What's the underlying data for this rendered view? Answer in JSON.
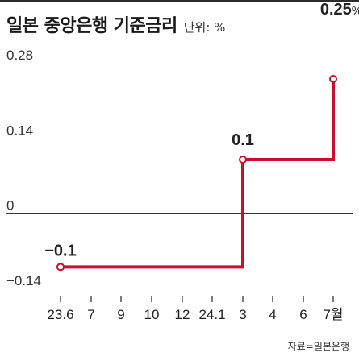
{
  "chart_data": {
    "type": "line",
    "step": true,
    "title": "일본 중앙은행 기준금리",
    "unit_label": "단위: %",
    "source": "자료=일본은행",
    "ylim": [
      -0.14,
      0.28
    ],
    "y_ticks": [
      "0.28",
      "0.14",
      "0",
      "−0.14"
    ],
    "y_tick_values": [
      0.28,
      0.14,
      0,
      -0.14
    ],
    "x_tick_labels": [
      "23.6",
      "7",
      "9",
      "10",
      "12",
      "24.1",
      "3",
      "4",
      "6",
      "7월"
    ],
    "x": [
      "23.6",
      "24.3",
      "24.7"
    ],
    "values": [
      -0.1,
      0.1,
      0.25
    ],
    "data_labels": [
      "−0.1",
      "0.1",
      "0.25"
    ],
    "data_label_unit": "%",
    "grid": false,
    "colors": {
      "line": "#c8102e",
      "axis": "#333333"
    }
  }
}
